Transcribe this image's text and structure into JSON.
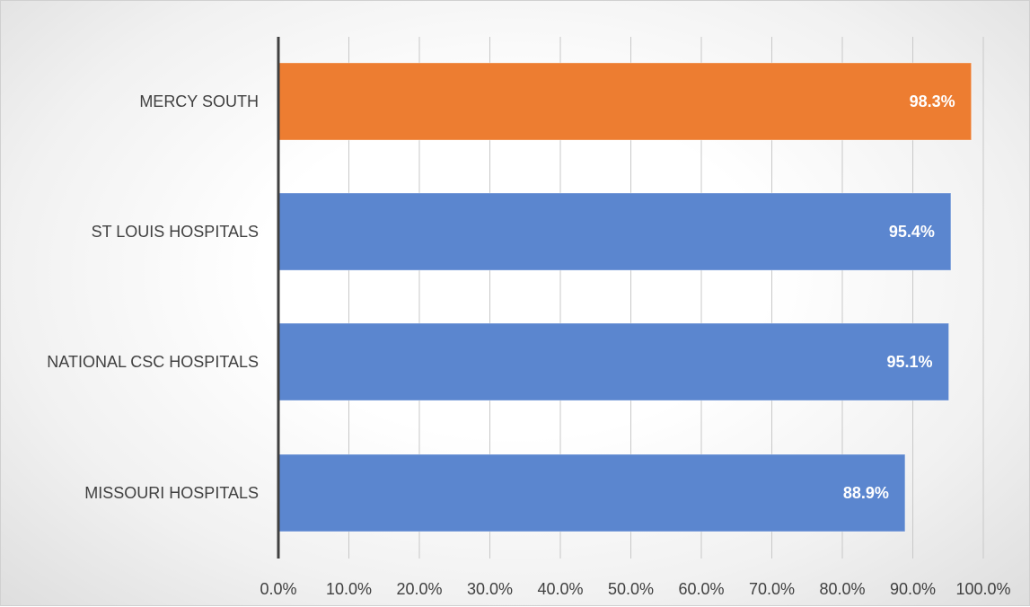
{
  "chart_data": {
    "type": "bar",
    "orientation": "horizontal",
    "categories": [
      "MERCY SOUTH",
      "ST LOUIS HOSPITALS",
      "NATIONAL CSC HOSPITALS",
      "MISSOURI HOSPITALS"
    ],
    "values": [
      98.3,
      95.4,
      95.1,
      88.9
    ],
    "data_labels": [
      "98.3%",
      "95.4%",
      "95.1%",
      "88.9%"
    ],
    "highlight_color": "#ED7D31",
    "bar_color": "#5B86CF",
    "highlight_index": 0,
    "xlim": [
      0,
      100
    ],
    "x_ticks": [
      0,
      10,
      20,
      30,
      40,
      50,
      60,
      70,
      80,
      90,
      100
    ],
    "x_tick_labels": [
      "0.0%",
      "10.0%",
      "20.0%",
      "30.0%",
      "40.0%",
      "50.0%",
      "60.0%",
      "70.0%",
      "80.0%",
      "90.0%",
      "100.0%"
    ],
    "grid": true,
    "legend": "none",
    "title": "",
    "xlabel": "",
    "ylabel": ""
  }
}
